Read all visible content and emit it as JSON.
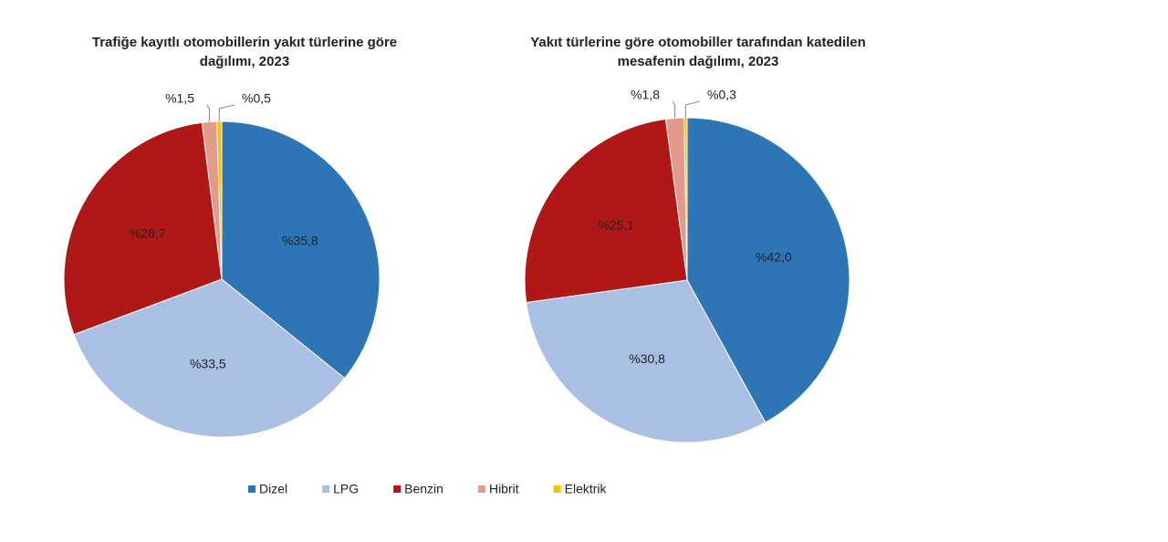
{
  "chart_data": [
    {
      "type": "pie",
      "title": [
        "Trafiğe kayıtlı otomobillerin yakıt türlerine göre",
        "dağılımı, 2023"
      ],
      "categories": [
        "Dizel",
        "LPG",
        "Benzin",
        "Hibrit",
        "Elektrik"
      ],
      "values": [
        35.8,
        33.5,
        28.7,
        1.5,
        0.5
      ],
      "value_labels": [
        "%35,8",
        "%33,5",
        "%28,7",
        "%1,5",
        "%0,5"
      ],
      "colors": [
        "#2e75b6",
        "#a9bfe4",
        "#b01717",
        "#e39a8a",
        "#f5c400"
      ]
    },
    {
      "type": "pie",
      "title": [
        "Yakıt türlerine göre otomobiller tarafından katedilen",
        "mesafenin dağılımı, 2023"
      ],
      "categories": [
        "Dizel",
        "LPG",
        "Benzin",
        "Hibrit",
        "Elektrik"
      ],
      "values": [
        42.0,
        30.8,
        25.1,
        1.8,
        0.3
      ],
      "value_labels": [
        "%42,0",
        "%30,8",
        "%25,1",
        "%1,8",
        "%0,3"
      ],
      "colors": [
        "#2e75b6",
        "#a9bfe4",
        "#b01717",
        "#e39a8a",
        "#f5c400"
      ]
    }
  ]
}
